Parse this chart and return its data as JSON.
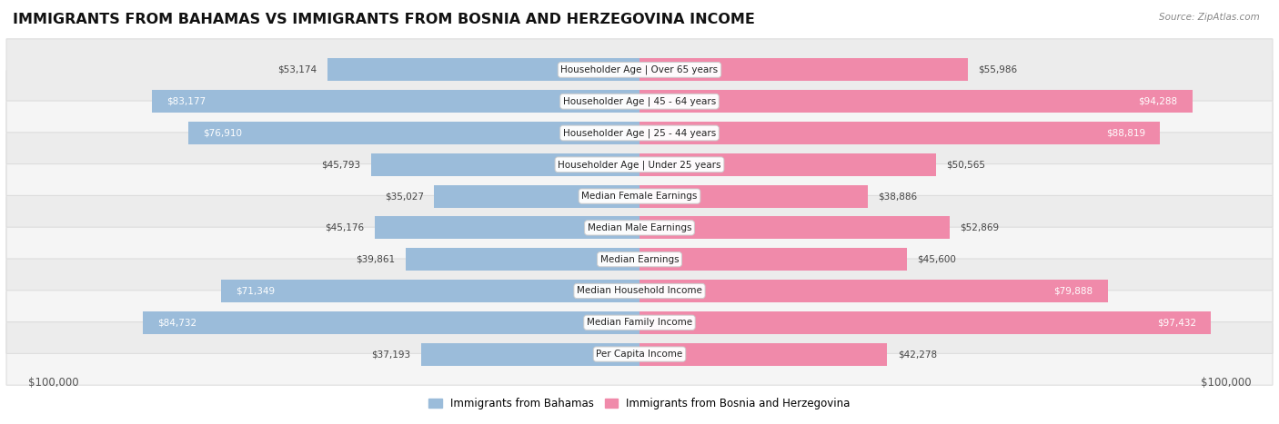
{
  "title": "IMMIGRANTS FROM BAHAMAS VS IMMIGRANTS FROM BOSNIA AND HERZEGOVINA INCOME",
  "source": "Source: ZipAtlas.com",
  "categories": [
    "Per Capita Income",
    "Median Family Income",
    "Median Household Income",
    "Median Earnings",
    "Median Male Earnings",
    "Median Female Earnings",
    "Householder Age | Under 25 years",
    "Householder Age | 25 - 44 years",
    "Householder Age | 45 - 64 years",
    "Householder Age | Over 65 years"
  ],
  "bahamas_values": [
    37193,
    84732,
    71349,
    39861,
    45176,
    35027,
    45793,
    76910,
    83177,
    53174
  ],
  "bosnia_values": [
    42278,
    97432,
    79888,
    45600,
    52869,
    38886,
    50565,
    88819,
    94288,
    55986
  ],
  "bahamas_color": "#9bbcda",
  "bosnia_color": "#f08aaa",
  "bar_height": 0.72,
  "xlim": 100000,
  "title_fontsize": 11.5,
  "tick_fontsize": 8.5,
  "legend_fontsize": 8.5,
  "category_fontsize": 7.5,
  "value_fontsize": 7.5,
  "row_colors": [
    "#f5f5f5",
    "#ececec"
  ],
  "row_edge_color": "#dddddd",
  "bahamas_label": "Immigrants from Bahamas",
  "bosnia_label": "Immigrants from Bosnia and Herzegovina"
}
